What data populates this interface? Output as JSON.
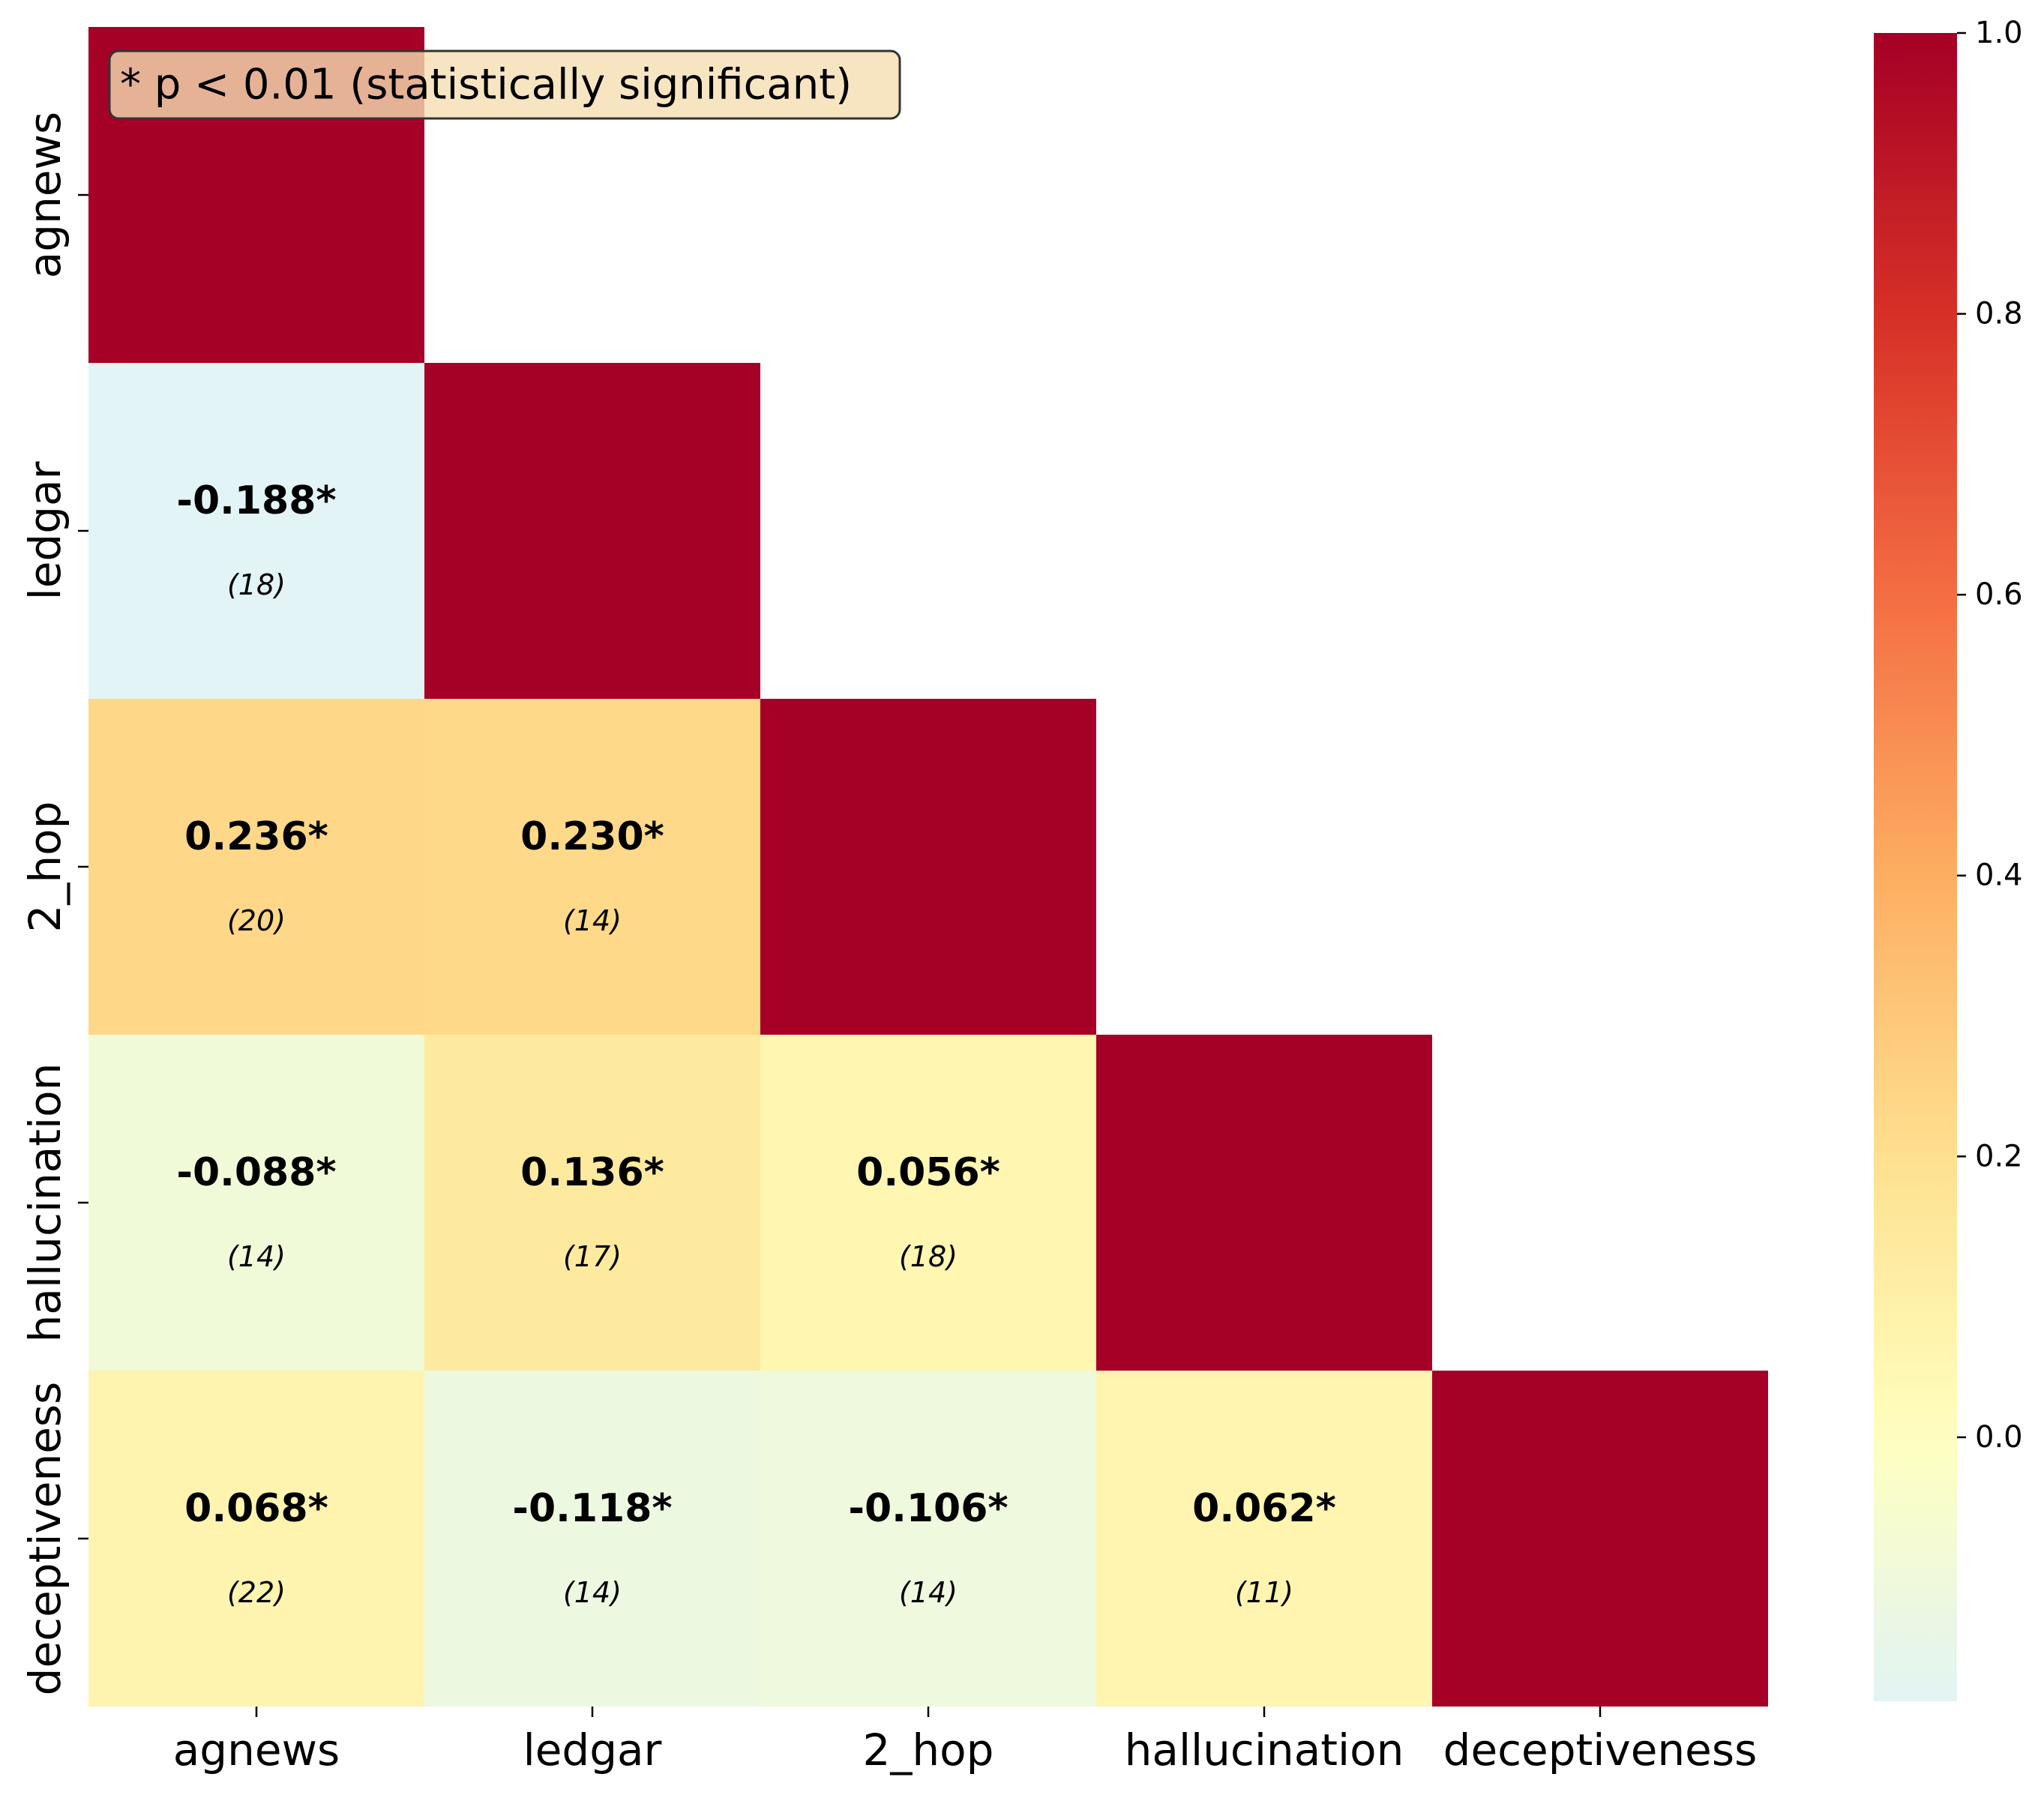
{
  "chart_data": {
    "type": "heatmap",
    "title": "",
    "xlabel": "",
    "ylabel": "",
    "rows": [
      "agnews",
      "ledgar",
      "2_hop",
      "hallucination",
      "deceptiveness"
    ],
    "columns": [
      "agnews",
      "ledgar",
      "2_hop",
      "hallucination",
      "deceptiveness"
    ],
    "mask": "upper triangle hidden; diagonal shown without labels",
    "values": [
      [
        1.0,
        null,
        null,
        null,
        null
      ],
      [
        -0.188,
        1.0,
        null,
        null,
        null
      ],
      [
        0.236,
        0.23,
        1.0,
        null,
        null
      ],
      [
        -0.088,
        0.136,
        0.056,
        1.0,
        null
      ],
      [
        0.068,
        -0.118,
        -0.106,
        0.062,
        1.0
      ]
    ],
    "cell_labels": [
      [
        null,
        null,
        null,
        null,
        null
      ],
      [
        "-0.188*",
        null,
        null,
        null,
        null
      ],
      [
        "0.236*",
        "0.230*",
        null,
        null,
        null
      ],
      [
        "-0.088*",
        "0.136*",
        "0.056*",
        null,
        null
      ],
      [
        "0.068*",
        "-0.118*",
        "-0.106*",
        "0.062*",
        null
      ]
    ],
    "counts": [
      [
        null,
        null,
        null,
        null,
        null
      ],
      [
        "(18)",
        null,
        null,
        null,
        null
      ],
      [
        "(20)",
        "(14)",
        null,
        null,
        null
      ],
      [
        "(14)",
        "(17)",
        "(18)",
        null,
        null
      ],
      [
        "(22)",
        "(14)",
        "(14)",
        "(11)",
        null
      ]
    ],
    "annotation": "* p < 0.01 (statistically significant)",
    "colorbar": {
      "colormap": "RdYlBu_r (centered at 0)",
      "vmin": -0.188,
      "vmax": 1.0,
      "center": 0.0,
      "ticks": [
        0.0,
        0.2,
        0.4,
        0.6,
        0.8,
        1.0
      ],
      "tick_labels": [
        "0.0",
        "0.2",
        "0.4",
        "0.6",
        "0.8",
        "1.0"
      ]
    },
    "colors": {
      "diagonal": "#a50026",
      "neg_low": "#e0f3f8",
      "neutral": "#ffffbf",
      "annotation_bg": "#f5deb3",
      "annotation_edge": "#333333"
    }
  }
}
